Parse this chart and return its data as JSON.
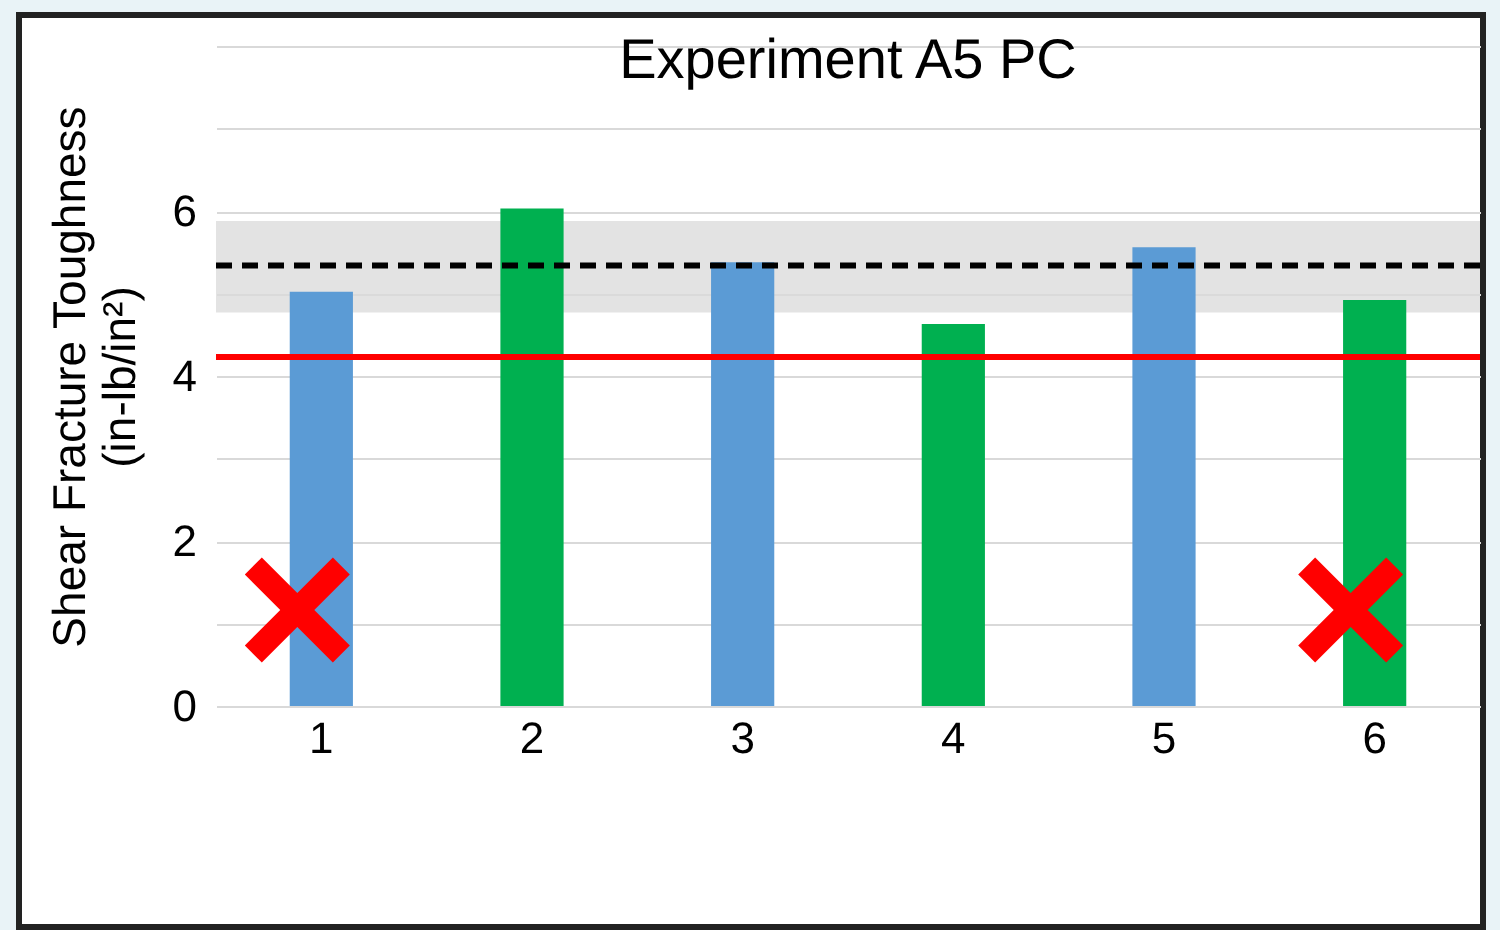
{
  "chart_data": {
    "type": "bar",
    "title": "Experiment A5 PC",
    "ylabel": "Shear Fracture Toughness\n(in-lb/in²)",
    "categories": [
      "1",
      "2",
      "3",
      "4",
      "5",
      "6"
    ],
    "values": [
      5.02,
      6.03,
      5.38,
      4.63,
      5.56,
      4.92
    ],
    "colors": [
      "#5b9bd5",
      "#00b050",
      "#5b9bd5",
      "#00b050",
      "#5b9bd5",
      "#00b050"
    ],
    "ylim": [
      0,
      8
    ],
    "yticks": [
      0,
      {
        "value": 1,
        "label": null
      },
      2,
      {
        "value": 3,
        "label": null
      },
      4,
      {
        "value": 5,
        "label": null
      },
      6,
      {
        "value": 7,
        "label": null
      },
      {
        "value": 8,
        "label": null
      }
    ],
    "grid": "y",
    "bands": [
      {
        "axis": "y",
        "from": 4.77,
        "to": 5.88,
        "color": "#d9d9d9"
      }
    ],
    "ref_lines": [
      {
        "axis": "y",
        "value": 5.34,
        "color": "#000000",
        "line_style": "dashed"
      },
      {
        "axis": "y",
        "value": 4.23,
        "color": "#ff0000",
        "line_style": "solid"
      }
    ]
  }
}
